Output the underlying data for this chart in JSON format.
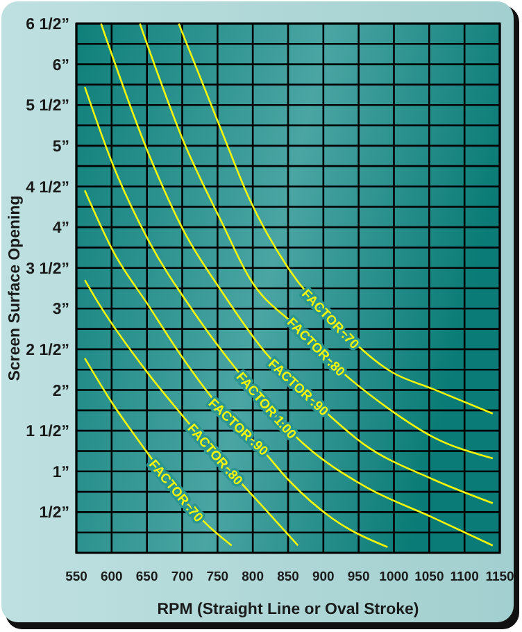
{
  "chart_data": {
    "type": "line",
    "xlabel": "RPM (Straight Line or Oval Stroke)",
    "ylabel": "Screen Surface Opening",
    "xlim": [
      550,
      1150
    ],
    "xticks": [
      550,
      600,
      650,
      700,
      750,
      800,
      850,
      900,
      950,
      1000,
      1050,
      1100,
      1150
    ],
    "ylim": [
      0,
      6.5
    ],
    "yticks": [
      {
        "value": 0.25,
        "label": null
      },
      {
        "value": 0.5,
        "label": "1/2”"
      },
      {
        "value": 0.75,
        "label": null
      },
      {
        "value": 1,
        "label": "1”"
      },
      {
        "value": 1.25,
        "label": null
      },
      {
        "value": 1.5,
        "label": "1 1/2”"
      },
      {
        "value": 1.75,
        "label": null
      },
      {
        "value": 2,
        "label": "2”"
      },
      {
        "value": 2.25,
        "label": null
      },
      {
        "value": 2.5,
        "label": "2 1/2”"
      },
      {
        "value": 2.75,
        "label": null
      },
      {
        "value": 3,
        "label": "3”"
      },
      {
        "value": 3.25,
        "label": null
      },
      {
        "value": 3.5,
        "label": "3 1/2”"
      },
      {
        "value": 3.75,
        "label": null
      },
      {
        "value": 4,
        "label": "4”"
      },
      {
        "value": 4.25,
        "label": null
      },
      {
        "value": 4.5,
        "label": "4 1/2”"
      },
      {
        "value": 4.75,
        "label": null
      },
      {
        "value": 5,
        "label": "5”"
      },
      {
        "value": 5.25,
        "label": null
      },
      {
        "value": 5.5,
        "label": "5 1/2”"
      },
      {
        "value": 5.75,
        "label": null
      },
      {
        "value": 6,
        "label": "6”"
      },
      {
        "value": 6.25,
        "label": null
      },
      {
        "value": 6.5,
        "label": "6 1/2”"
      }
    ],
    "grid": true,
    "marker": "none",
    "line_style": "solid",
    "series": [
      {
        "name": "FACTOR .70",
        "color": "#f5f50a",
        "x": [
          562,
          603,
          638,
          691,
          736,
          770
        ],
        "values": [
          2.39,
          1.81,
          1.38,
          0.77,
          0.34,
          0.09
        ]
      },
      {
        "name": "FACTOR .80",
        "color": "#f5f50a",
        "x": [
          562,
          579,
          652,
          697,
          756,
          815,
          864
        ],
        "values": [
          3.35,
          3.1,
          2.2,
          1.72,
          1.12,
          0.56,
          0.09
        ]
      },
      {
        "name": "FACTOR .90",
        "color": "#f5f50a",
        "x": [
          562,
          603,
          652,
          697,
          756,
          815,
          850,
          913,
          991
        ],
        "values": [
          4.45,
          3.69,
          3.04,
          2.44,
          1.76,
          1.25,
          0.9,
          0.42,
          0.07
        ]
      },
      {
        "name": "FACTOR 1.00",
        "color": "#f5f50a",
        "x": [
          562,
          603,
          652,
          717,
          795,
          873,
          958,
          1056,
          1140
        ],
        "values": [
          5.72,
          4.74,
          3.84,
          2.95,
          2.06,
          1.33,
          0.82,
          0.43,
          0.09
        ]
      },
      {
        "name": "FACTOR .90",
        "color": "#f5f50a",
        "x": [
          585,
          652,
          703,
          756,
          815,
          893,
          958,
          1056,
          1140
        ],
        "values": [
          6.5,
          4.91,
          3.94,
          3.21,
          2.49,
          1.81,
          1.33,
          0.9,
          0.61
        ]
      },
      {
        "name": "FACTOR .80",
        "color": "#f5f50a",
        "x": [
          640,
          703,
          756,
          795,
          864,
          932,
          991,
          1056,
          1140
        ],
        "values": [
          6.5,
          5.03,
          4.06,
          3.38,
          2.76,
          2.18,
          1.78,
          1.42,
          1.16
        ]
      },
      {
        "name": "FACTOR .70",
        "color": "#f5f50a",
        "x": [
          695,
          755,
          795,
          850,
          913,
          997,
          1056,
          1140
        ],
        "values": [
          6.5,
          5.2,
          4.35,
          3.5,
          2.85,
          2.22,
          2.01,
          1.71
        ]
      }
    ]
  }
}
